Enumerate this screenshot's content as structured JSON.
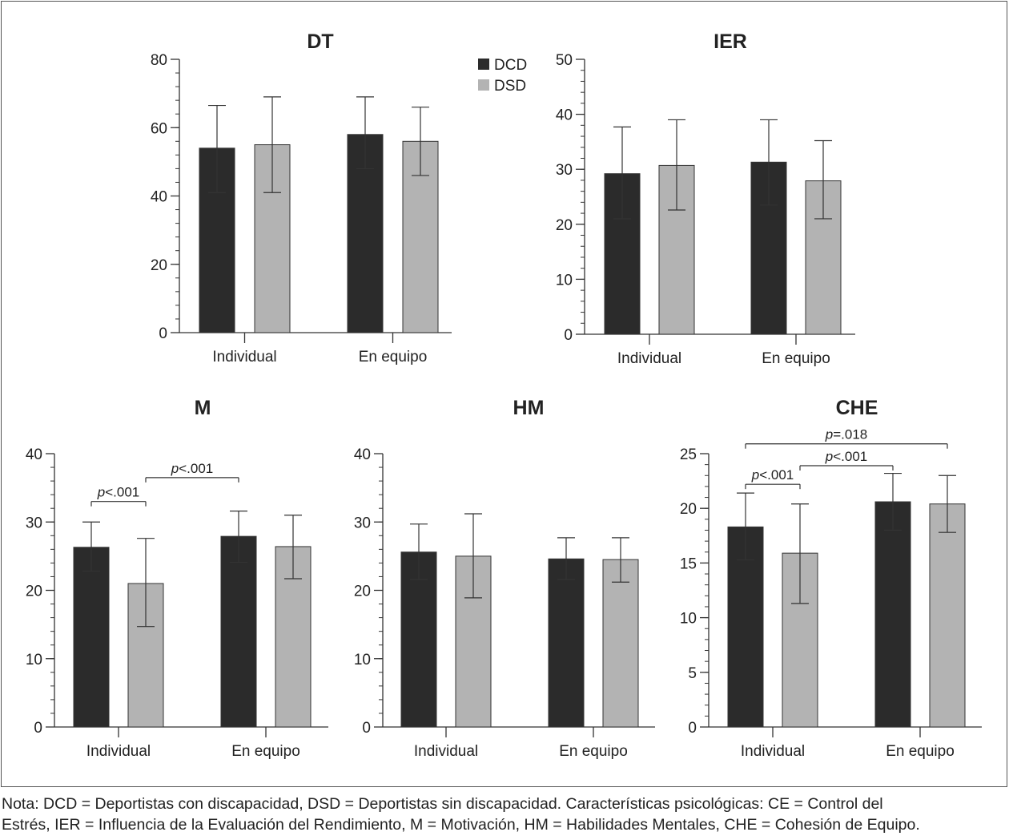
{
  "legend": [
    {
      "name": "DCD",
      "color": "#2b2b2b"
    },
    {
      "name": "DSD",
      "color": "#b3b3b3"
    }
  ],
  "colors": {
    "axis": "#333333",
    "dcd": "#2b2b2b",
    "dsd": "#b3b3b3"
  },
  "note": {
    "line1": "Nota: DCD = Deportistas con discapacidad, DSD = Deportistas sin discapacidad. Características psicológicas: CE = Control del",
    "line2": "Estrés, IER = Influencia de la Evaluación del Rendimiento, M = Motivación, HM = Habilidades Mentales, CHE = Cohesión de Equipo."
  },
  "chart_data": [
    {
      "type": "bar",
      "title": "DT",
      "categories": [
        "Individual",
        "En equipo"
      ],
      "series": [
        {
          "name": "DCD",
          "values": [
            54,
            58
          ],
          "error": [
            [
              41,
              66.5
            ],
            [
              48,
              69
            ]
          ]
        },
        {
          "name": "DSD",
          "values": [
            55,
            56
          ],
          "error": [
            [
              41,
              69
            ],
            [
              46,
              66
            ]
          ]
        }
      ],
      "ylim": [
        0,
        80
      ],
      "yticks": [
        0,
        20,
        40,
        60,
        80
      ],
      "annotations": []
    },
    {
      "type": "bar",
      "title": "IER",
      "categories": [
        "Individual",
        "En equipo"
      ],
      "series": [
        {
          "name": "DCD",
          "values": [
            29.2,
            31.3
          ],
          "error": [
            [
              21,
              37.7
            ],
            [
              23.5,
              39
            ]
          ]
        },
        {
          "name": "DSD",
          "values": [
            30.7,
            27.9
          ],
          "error": [
            [
              22.6,
              39
            ],
            [
              21,
              35.2
            ]
          ]
        }
      ],
      "ylim": [
        0,
        50
      ],
      "yticks": [
        0,
        10,
        20,
        30,
        40,
        50
      ],
      "annotations": []
    },
    {
      "type": "bar",
      "title": "M",
      "categories": [
        "Individual",
        "En equipo"
      ],
      "series": [
        {
          "name": "DCD",
          "values": [
            26.3,
            27.9
          ],
          "error": [
            [
              22.8,
              30
            ],
            [
              24.1,
              31.6
            ]
          ]
        },
        {
          "name": "DSD",
          "values": [
            21,
            26.4
          ],
          "error": [
            [
              14.7,
              27.6
            ],
            [
              21.7,
              31
            ]
          ]
        }
      ],
      "ylim": [
        0,
        40
      ],
      "yticks": [
        0,
        10,
        20,
        30,
        40
      ],
      "annotations": [
        {
          "label": "p<.001",
          "from": [
            0,
            0
          ],
          "to": [
            0,
            1
          ],
          "y": 33
        },
        {
          "label": "p<.001",
          "from": [
            0,
            1
          ],
          "to": [
            1,
            0
          ],
          "y": 36.5
        }
      ]
    },
    {
      "type": "bar",
      "title": "HM",
      "categories": [
        "Individual",
        "En equipo"
      ],
      "series": [
        {
          "name": "DCD",
          "values": [
            25.6,
            24.6
          ],
          "error": [
            [
              21.6,
              29.7
            ],
            [
              21.6,
              27.7
            ]
          ]
        },
        {
          "name": "DSD",
          "values": [
            25,
            24.5
          ],
          "error": [
            [
              18.9,
              31.2
            ],
            [
              21.2,
              27.7
            ]
          ]
        }
      ],
      "ylim": [
        0,
        40
      ],
      "yticks": [
        0,
        10,
        20,
        30,
        40
      ],
      "annotations": []
    },
    {
      "type": "bar",
      "title": "CHE",
      "categories": [
        "Individual",
        "En equipo"
      ],
      "series": [
        {
          "name": "DCD",
          "values": [
            18.3,
            20.6
          ],
          "error": [
            [
              15.3,
              21.4
            ],
            [
              18,
              23.2
            ]
          ]
        },
        {
          "name": "DSD",
          "values": [
            15.9,
            20.4
          ],
          "error": [
            [
              11.3,
              20.4
            ],
            [
              17.8,
              23
            ]
          ]
        }
      ],
      "ylim": [
        0,
        25
      ],
      "yticks": [
        0,
        5,
        10,
        15,
        20,
        25
      ],
      "annotations": [
        {
          "label": "p<.001",
          "from": [
            0,
            0
          ],
          "to": [
            0,
            1
          ],
          "y": 22.2
        },
        {
          "label": "p<.001",
          "from": [
            0,
            1
          ],
          "to": [
            1,
            0
          ],
          "y": 23.9
        },
        {
          "label": "p=.018",
          "from": [
            0,
            0
          ],
          "to": [
            1,
            1
          ],
          "y": 25.9
        }
      ]
    }
  ]
}
